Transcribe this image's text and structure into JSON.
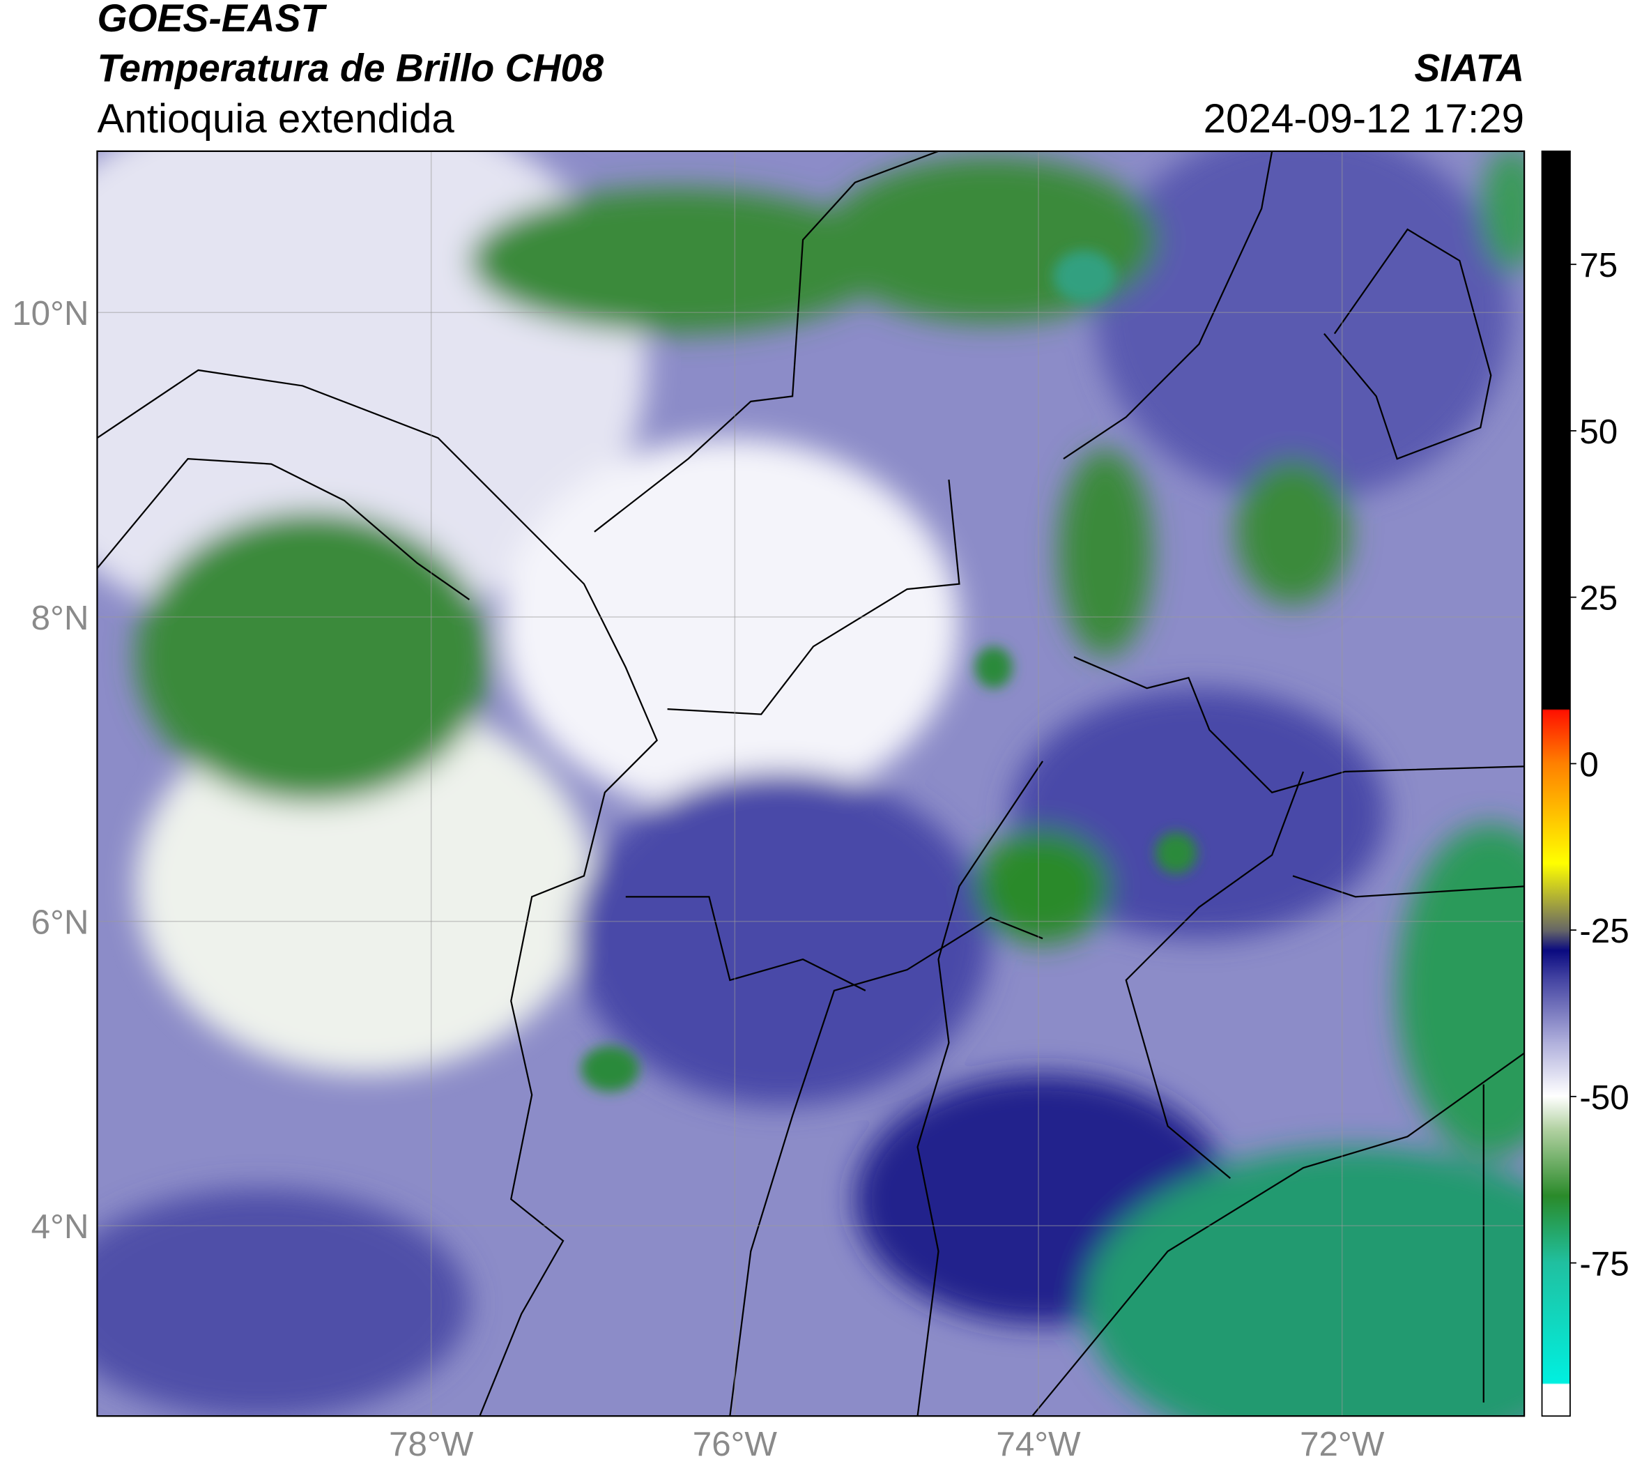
{
  "header": {
    "title_line1": "GOES-EAST",
    "title_line2": "Temperatura de Brillo CH08",
    "subtitle": "Antioquia extendida",
    "agency": "SIATA",
    "timestamp": "2024-09-12 17:29"
  },
  "map": {
    "lon_range": [
      -80.2,
      -70.8
    ],
    "lat_range": [
      2.75,
      11.06
    ],
    "lat_ticks": [
      {
        "value": 10,
        "label": "10°N"
      },
      {
        "value": 8,
        "label": "8°N"
      },
      {
        "value": 6,
        "label": "6°N"
      },
      {
        "value": 4,
        "label": "4°N"
      }
    ],
    "lon_ticks": [
      {
        "value": -78,
        "label": "78°W"
      },
      {
        "value": -76,
        "label": "76°W"
      },
      {
        "value": -74,
        "label": "74°W"
      },
      {
        "value": -72,
        "label": "72°W"
      }
    ]
  },
  "colorbar": {
    "range": [
      -98,
      92
    ],
    "ticks": [
      -75,
      -50,
      -25,
      0,
      25,
      50,
      75
    ]
  }
}
